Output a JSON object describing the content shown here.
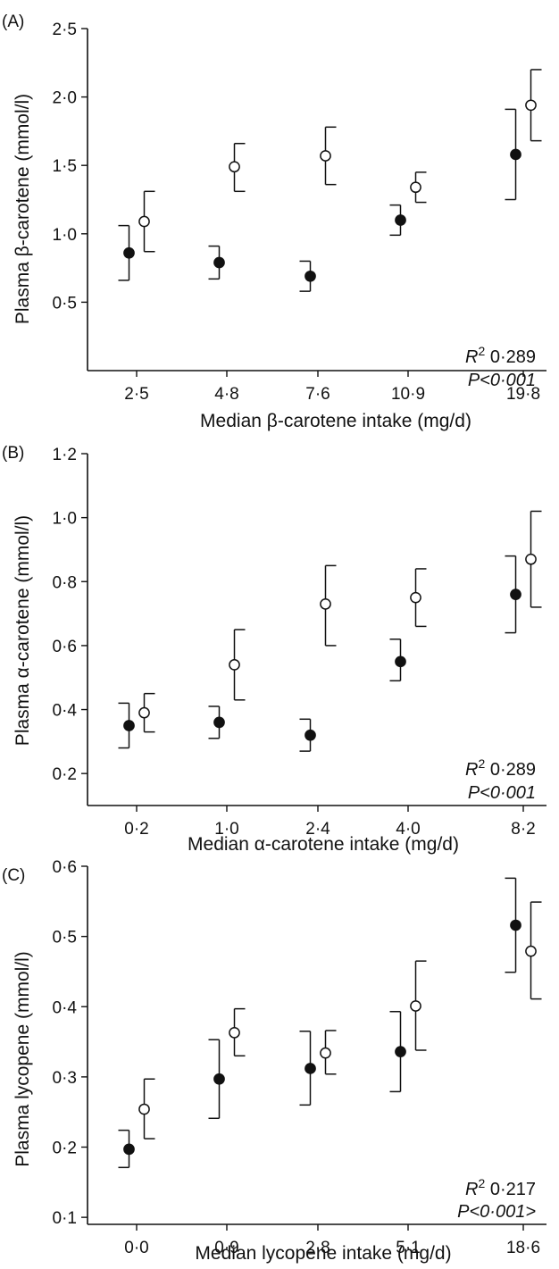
{
  "chart_data": [
    {
      "panel_label": "(A)",
      "type": "scatter",
      "error_bars": true,
      "categories": [
        "2·5",
        "4·8",
        "7·6",
        "10·9",
        "19·8"
      ],
      "ylim": [
        0.0,
        2.5
      ],
      "yticks": [
        "0·5",
        "1·0",
        "1·5",
        "2·0",
        "2·5"
      ],
      "ytick_values": [
        0.5,
        1.0,
        1.5,
        2.0,
        2.5
      ],
      "ylabel": "Plasma β-carotene (mmol/l)",
      "xlabel": "Median β-carotene intake (mg/d)",
      "series": [
        {
          "marker": "filled",
          "values": [
            0.86,
            0.79,
            0.69,
            1.1,
            1.58
          ],
          "err_low": [
            0.66,
            0.67,
            0.58,
            0.99,
            1.25
          ],
          "err_high": [
            1.06,
            0.91,
            0.8,
            1.21,
            1.91
          ]
        },
        {
          "marker": "open",
          "values": [
            1.09,
            1.49,
            1.57,
            1.34,
            1.94
          ],
          "err_low": [
            0.87,
            1.31,
            1.36,
            1.23,
            1.68
          ],
          "err_high": [
            1.31,
            1.66,
            1.78,
            1.45,
            2.2
          ]
        }
      ],
      "stats": {
        "r2_symbol": "R",
        "r2_sup": "2",
        "r2_value": " 0·289",
        "p_text": "P<0·001"
      }
    },
    {
      "panel_label": "(B)",
      "type": "scatter",
      "error_bars": true,
      "categories": [
        "0·2",
        "1·0",
        "2·4",
        "4·0",
        "8·2"
      ],
      "ylim": [
        0.1,
        1.2
      ],
      "yticks": [
        "0·2",
        "0·4",
        "0·6",
        "0·8",
        "1·0",
        "1·2"
      ],
      "ytick_values": [
        0.2,
        0.4,
        0.6,
        0.8,
        1.0,
        1.2
      ],
      "ylabel": "Plasma α-carotene (mmol/l)",
      "xlabel": "Median α-carotene intake (mg/d)",
      "series": [
        {
          "marker": "filled",
          "values": [
            0.35,
            0.36,
            0.32,
            0.55,
            0.76
          ],
          "err_low": [
            0.28,
            0.31,
            0.27,
            0.49,
            0.64
          ],
          "err_high": [
            0.42,
            0.41,
            0.37,
            0.62,
            0.88
          ]
        },
        {
          "marker": "open",
          "values": [
            0.39,
            0.54,
            0.73,
            0.75,
            0.87
          ],
          "err_low": [
            0.33,
            0.43,
            0.6,
            0.66,
            0.72
          ],
          "err_high": [
            0.45,
            0.65,
            0.85,
            0.84,
            1.02
          ]
        }
      ],
      "stats": {
        "r2_symbol": "R",
        "r2_sup": "2",
        "r2_value": " 0·289",
        "p_text": "P<0·001"
      }
    },
    {
      "panel_label": "(C)",
      "type": "scatter",
      "error_bars": true,
      "categories": [
        "0·0",
        "0·9",
        "2·8",
        "5·1",
        "18·6"
      ],
      "ylim": [
        0.09,
        0.6
      ],
      "yticks": [
        "0·1",
        "0·2",
        "0·3",
        "0·4",
        "0·5",
        "0·6"
      ],
      "ytick_values": [
        0.1,
        0.2,
        0.3,
        0.4,
        0.5,
        0.6
      ],
      "ylabel": "Plasma lycopene (mmol/l)",
      "xlabel": "Median lycopene intake (mg/d)",
      "series": [
        {
          "marker": "filled",
          "values": [
            0.197,
            0.297,
            0.312,
            0.336,
            0.516
          ],
          "err_low": [
            0.171,
            0.241,
            0.26,
            0.279,
            0.449
          ],
          "err_high": [
            0.224,
            0.353,
            0.365,
            0.393,
            0.583
          ]
        },
        {
          "marker": "open",
          "values": [
            0.254,
            0.363,
            0.334,
            0.401,
            0.479
          ],
          "err_low": [
            0.212,
            0.33,
            0.304,
            0.338,
            0.411
          ],
          "err_high": [
            0.297,
            0.397,
            0.366,
            0.465,
            0.549
          ]
        }
      ],
      "stats": {
        "r2_symbol": "R",
        "r2_sup": "2",
        "r2_value": " 0·217",
        "p_text": "P<0·001>"
      }
    }
  ]
}
